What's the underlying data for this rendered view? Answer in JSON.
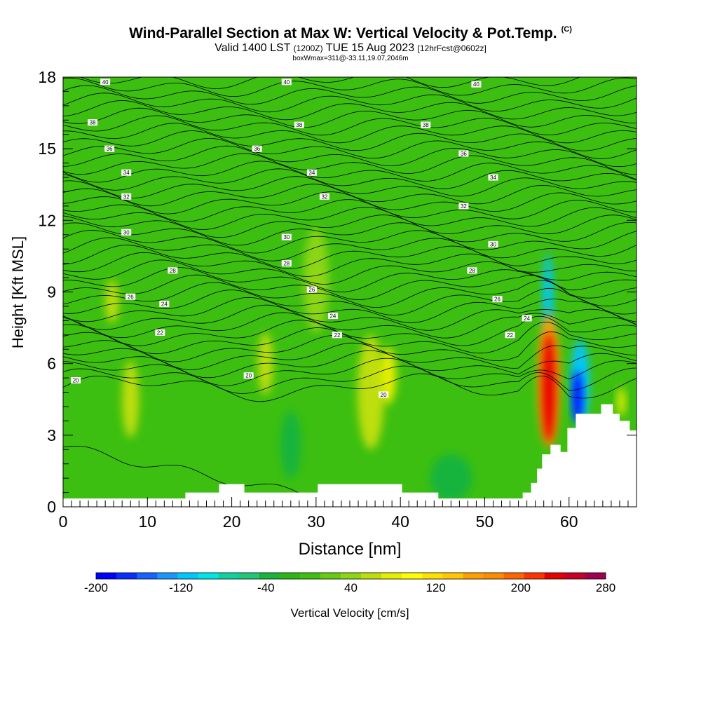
{
  "header": {
    "title": "Wind-Parallel Section at Max W: Vertical Velocity & Pot.Temp.",
    "copyright": "(C)",
    "subtitle_main": "Valid 1400 LST",
    "subtitle_utc": "(1200Z)",
    "subtitle_date": "TUE 15 Aug 2023",
    "subtitle_fcst": "[12hrFcst@0602z]",
    "box_info": "boxWmax=311@-33.11,19.07,2046m"
  },
  "colors": {
    "background_fill": "#3cbf10",
    "terrain": "#ffffff",
    "contour_line": "#000000"
  },
  "chart_data": {
    "type": "heatmap",
    "title": "Wind-Parallel Section at Max W: Vertical Velocity & Pot.Temp.",
    "xlabel": "Distance [nm]",
    "ylabel": "Height [Kft MSL]",
    "xlim": [
      0,
      68
    ],
    "ylim": [
      0,
      18
    ],
    "x_ticks": [
      0,
      10,
      20,
      30,
      40,
      50,
      60
    ],
    "y_ticks": [
      0,
      3,
      6,
      9,
      12,
      15,
      18
    ],
    "colorbar": {
      "label": "Vertical Velocity [cm/s]",
      "min": -200,
      "max": 280,
      "step": 20,
      "tick_labels": [
        "-200",
        "-120",
        "-40",
        "40",
        "120",
        "200",
        "280"
      ],
      "colors": [
        "#0000ff",
        "#0a2cff",
        "#1464ff",
        "#1a96ff",
        "#00c8ff",
        "#00e6e6",
        "#10d2a0",
        "#20c878",
        "#18b43c",
        "#2cb814",
        "#40c010",
        "#66cc10",
        "#8cd614",
        "#bede0a",
        "#e6ee00",
        "#ffff00",
        "#ffe000",
        "#ffc800",
        "#ffa000",
        "#ff8c00",
        "#ff6400",
        "#ff3200",
        "#e60000",
        "#c80028",
        "#a00050"
      ]
    },
    "terrain_profile": [
      [
        0,
        0.35
      ],
      [
        14.5,
        0.35
      ],
      [
        14.5,
        0.6
      ],
      [
        18.5,
        0.6
      ],
      [
        18.5,
        0.95
      ],
      [
        21.5,
        0.95
      ],
      [
        21.5,
        0.6
      ],
      [
        30.2,
        0.6
      ],
      [
        30.2,
        0.95
      ],
      [
        40.2,
        0.95
      ],
      [
        40.2,
        0.6
      ],
      [
        44.5,
        0.6
      ],
      [
        44.5,
        0.35
      ],
      [
        54.5,
        0.35
      ],
      [
        54.5,
        0.6
      ],
      [
        55.5,
        0.6
      ],
      [
        55.5,
        1.0
      ],
      [
        56.2,
        1.0
      ],
      [
        56.2,
        1.6
      ],
      [
        56.8,
        1.6
      ],
      [
        56.8,
        2.2
      ],
      [
        57.8,
        2.2
      ],
      [
        57.8,
        2.6
      ],
      [
        59,
        2.6
      ],
      [
        59,
        2.3
      ],
      [
        59.8,
        2.3
      ],
      [
        59.8,
        3.3
      ],
      [
        60.8,
        3.3
      ],
      [
        60.8,
        3.9
      ],
      [
        63.8,
        3.9
      ],
      [
        63.8,
        4.3
      ],
      [
        65.2,
        4.3
      ],
      [
        65.2,
        3.9
      ],
      [
        66,
        3.9
      ],
      [
        66,
        3.6
      ],
      [
        67.2,
        3.6
      ],
      [
        67.2,
        3.2
      ],
      [
        68,
        3.2
      ],
      [
        68,
        2.9
      ]
    ],
    "velocity_features": [
      {
        "x": 8,
        "y": 4.5,
        "rx": 1.0,
        "ry": 1.6,
        "value": 60
      },
      {
        "x": 5.8,
        "y": 8.6,
        "rx": 0.8,
        "ry": 0.9,
        "value": 60
      },
      {
        "x": 24,
        "y": 6,
        "rx": 0.9,
        "ry": 1.3,
        "value": 60
      },
      {
        "x": 30,
        "y": 9.5,
        "rx": 1.5,
        "ry": 2.2,
        "value": 40
      },
      {
        "x": 36.5,
        "y": 4.8,
        "rx": 1.6,
        "ry": 2.4,
        "value": 60
      },
      {
        "x": 38.5,
        "y": 5.5,
        "rx": 1.0,
        "ry": 1.2,
        "value": 80
      },
      {
        "x": 27,
        "y": 2.6,
        "rx": 1.2,
        "ry": 1.4,
        "value": -40
      },
      {
        "x": 46,
        "y": 1.2,
        "rx": 2.5,
        "ry": 1.0,
        "value": -40
      },
      {
        "x": 57.5,
        "y": 8.8,
        "rx": 0.6,
        "ry": 1.8,
        "value": -120
      },
      {
        "x": 57.6,
        "y": 5.3,
        "rx": 1.3,
        "ry": 2.8,
        "value": 160
      },
      {
        "x": 57.6,
        "y": 5.0,
        "rx": 0.8,
        "ry": 2.3,
        "value": 240
      },
      {
        "x": 61.3,
        "y": 5.2,
        "rx": 1.1,
        "ry": 1.8,
        "value": -120
      },
      {
        "x": 61.0,
        "y": 4.6,
        "rx": 0.55,
        "ry": 1.1,
        "value": -200
      },
      {
        "x": 66.2,
        "y": 4.4,
        "rx": 0.5,
        "ry": 0.6,
        "value": 80
      }
    ],
    "contour_levels": [
      20,
      22,
      24,
      26,
      28,
      30,
      32,
      34,
      36,
      38,
      40
    ],
    "contour_labels": [
      {
        "x": 1.5,
        "y": 5.3,
        "text": "20"
      },
      {
        "x": 22,
        "y": 5.5,
        "text": "20"
      },
      {
        "x": 38,
        "y": 4.7,
        "text": "20"
      },
      {
        "x": 11.5,
        "y": 7.3,
        "text": "22"
      },
      {
        "x": 32.5,
        "y": 7.2,
        "text": "22"
      },
      {
        "x": 53,
        "y": 7.2,
        "text": "22"
      },
      {
        "x": 12,
        "y": 8.5,
        "text": "24"
      },
      {
        "x": 32,
        "y": 8.0,
        "text": "24"
      },
      {
        "x": 55,
        "y": 7.9,
        "text": "24"
      },
      {
        "x": 8,
        "y": 8.8,
        "text": "26"
      },
      {
        "x": 29.5,
        "y": 9.1,
        "text": "26"
      },
      {
        "x": 51.5,
        "y": 8.7,
        "text": "26"
      },
      {
        "x": 13,
        "y": 9.9,
        "text": "28"
      },
      {
        "x": 26.5,
        "y": 10.2,
        "text": "28"
      },
      {
        "x": 48.5,
        "y": 9.9,
        "text": "28"
      },
      {
        "x": 7.5,
        "y": 11.5,
        "text": "30"
      },
      {
        "x": 26.5,
        "y": 11.3,
        "text": "30"
      },
      {
        "x": 51,
        "y": 11.0,
        "text": "30"
      },
      {
        "x": 7.5,
        "y": 13.0,
        "text": "32"
      },
      {
        "x": 31,
        "y": 13.0,
        "text": "32"
      },
      {
        "x": 47.5,
        "y": 12.6,
        "text": "32"
      },
      {
        "x": 7.5,
        "y": 14.0,
        "text": "34"
      },
      {
        "x": 29.5,
        "y": 14.0,
        "text": "34"
      },
      {
        "x": 51,
        "y": 13.8,
        "text": "34"
      },
      {
        "x": 5.5,
        "y": 15.0,
        "text": "36"
      },
      {
        "x": 23,
        "y": 15.0,
        "text": "36"
      },
      {
        "x": 47.5,
        "y": 14.8,
        "text": "36"
      },
      {
        "x": 3.5,
        "y": 16.1,
        "text": "38"
      },
      {
        "x": 28,
        "y": 16.0,
        "text": "38"
      },
      {
        "x": 43,
        "y": 16.0,
        "text": "38"
      },
      {
        "x": 5,
        "y": 17.8,
        "text": "40"
      },
      {
        "x": 26.5,
        "y": 17.8,
        "text": "40"
      },
      {
        "x": 49,
        "y": 17.7,
        "text": "40"
      }
    ]
  }
}
